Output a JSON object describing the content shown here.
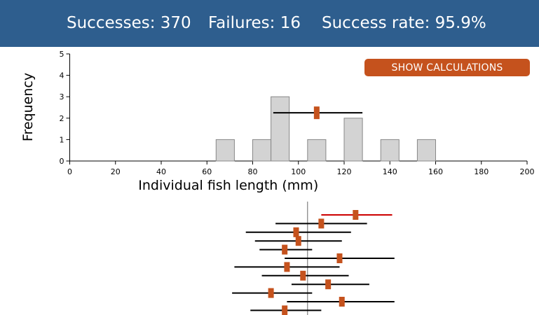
{
  "header": {
    "successes_label": "Successes: 370",
    "failures_label": "Failures: 16",
    "rate_label": "Success rate: 95.9%",
    "background_color": "#2e5e8e"
  },
  "calc_button": {
    "label": "SHOW CALCULATIONS",
    "color": "#c5521d"
  },
  "chart_data": [
    {
      "type": "bar",
      "chart_kind": "histogram",
      "xlabel": "Individual fish length (mm)",
      "ylabel": "Frequency",
      "xlim": [
        0,
        200
      ],
      "ylim": [
        0,
        5
      ],
      "x_ticks": [
        0,
        20,
        40,
        60,
        80,
        100,
        120,
        140,
        160,
        180,
        200
      ],
      "y_ticks": [
        0,
        1,
        2,
        3,
        4,
        5
      ],
      "bin_width": 8,
      "bars": [
        {
          "start": 64,
          "count": 1
        },
        {
          "start": 80,
          "count": 1
        },
        {
          "start": 88,
          "count": 3
        },
        {
          "start": 104,
          "count": 1
        },
        {
          "start": 120,
          "count": 2
        },
        {
          "start": 136,
          "count": 1
        },
        {
          "start": 152,
          "count": 1
        }
      ],
      "mean_marker": {
        "mean": 108,
        "ci_low": 89,
        "ci_high": 128,
        "y": 2.25
      },
      "bar_fill": "#d3d3d3",
      "marker_color": "#c5521d"
    },
    {
      "type": "scatter",
      "chart_kind": "confidence-interval-stack",
      "xlim": [
        0,
        200
      ],
      "reference_value": 104,
      "intervals": [
        {
          "mean": 125,
          "low": 110,
          "high": 141,
          "missed": true
        },
        {
          "mean": 110,
          "low": 90,
          "high": 130,
          "missed": false
        },
        {
          "mean": 99,
          "low": 77,
          "high": 123,
          "missed": false
        },
        {
          "mean": 100,
          "low": 81,
          "high": 119,
          "missed": false
        },
        {
          "mean": 94,
          "low": 83,
          "high": 106,
          "missed": false
        },
        {
          "mean": 118,
          "low": 94,
          "high": 142,
          "missed": false
        },
        {
          "mean": 95,
          "low": 72,
          "high": 118,
          "missed": false
        },
        {
          "mean": 102,
          "low": 84,
          "high": 122,
          "missed": false
        },
        {
          "mean": 113,
          "low": 97,
          "high": 131,
          "missed": false
        },
        {
          "mean": 88,
          "low": 71,
          "high": 106,
          "missed": false
        },
        {
          "mean": 119,
          "low": 95,
          "high": 142,
          "missed": false
        },
        {
          "mean": 94,
          "low": 79,
          "high": 110,
          "missed": false
        }
      ],
      "hit_color": "#000000",
      "miss_color": "#cc0000",
      "marker_color": "#c5521d"
    }
  ]
}
